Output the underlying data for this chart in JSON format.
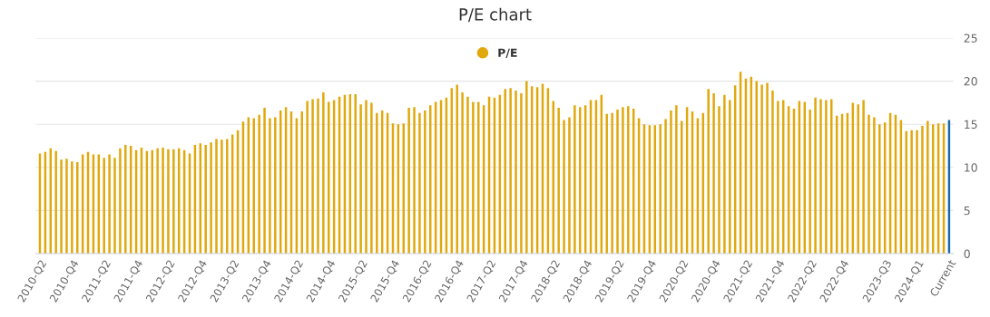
{
  "chart_data": {
    "type": "bar",
    "title": "P/E chart",
    "categories": [
      "2010-Q2",
      null,
      null,
      null,
      null,
      null,
      "2010-Q4",
      null,
      null,
      null,
      null,
      null,
      "2011-Q2",
      null,
      null,
      null,
      null,
      null,
      "2011-Q4",
      null,
      null,
      null,
      null,
      null,
      "2012-Q2",
      null,
      null,
      null,
      null,
      null,
      "2012-Q4",
      null,
      null,
      null,
      null,
      null,
      "2013-Q2",
      null,
      null,
      null,
      null,
      null,
      "2013-Q4",
      null,
      null,
      null,
      null,
      null,
      "2014-Q2",
      null,
      null,
      null,
      null,
      null,
      "2014-Q4",
      null,
      null,
      null,
      null,
      null,
      "2015-Q2",
      null,
      null,
      null,
      null,
      null,
      "2015-Q4",
      null,
      null,
      null,
      null,
      null,
      "2016-Q2",
      null,
      null,
      null,
      null,
      null,
      "2016-Q4",
      null,
      null,
      null,
      null,
      null,
      "2017-Q2",
      null,
      null,
      null,
      null,
      null,
      "2017-Q4",
      null,
      null,
      null,
      null,
      null,
      "2018-Q2",
      null,
      null,
      null,
      null,
      null,
      "2018-Q4",
      null,
      null,
      null,
      null,
      null,
      "2019-Q2",
      null,
      null,
      null,
      null,
      null,
      "2019-Q4",
      null,
      null,
      null,
      null,
      null,
      "2020-Q2",
      null,
      null,
      null,
      null,
      null,
      "2020-Q4",
      null,
      null,
      null,
      null,
      null,
      "2021-Q2",
      null,
      null,
      null,
      null,
      null,
      "2021-Q4",
      null,
      null,
      null,
      null,
      null,
      "2022-Q2",
      null,
      null,
      null,
      null,
      null,
      "2022-Q4",
      null,
      null,
      null,
      null,
      null,
      null,
      null,
      "2023-Q3",
      null,
      null,
      null,
      null,
      null,
      "2024-Q1",
      null,
      null,
      null,
      null,
      null,
      "Current"
    ],
    "series": [
      {
        "name": "P/E",
        "color": "#e0a80c",
        "values": [
          11.6,
          11.8,
          12.2,
          11.9,
          10.9,
          11.0,
          10.7,
          10.6,
          11.5,
          11.8,
          11.5,
          11.5,
          11.1,
          11.5,
          11.1,
          12.2,
          12.6,
          12.5,
          12.0,
          12.3,
          11.9,
          12.0,
          12.2,
          12.3,
          12.1,
          12.1,
          12.2,
          12.0,
          11.6,
          12.6,
          12.8,
          12.6,
          12.9,
          13.3,
          13.2,
          13.3,
          13.8,
          14.3,
          15.3,
          15.8,
          15.7,
          16.1,
          16.9,
          15.7,
          15.8,
          16.6,
          17.0,
          16.5,
          15.7,
          16.5,
          17.7,
          17.9,
          18.0,
          18.7,
          17.6,
          17.8,
          18.2,
          18.4,
          18.5,
          18.5,
          17.3,
          17.8,
          17.5,
          16.3,
          16.6,
          16.3,
          15.1,
          15.0,
          15.1,
          16.9,
          17.0,
          16.3,
          16.6,
          17.2,
          17.6,
          17.8,
          18.1,
          19.2,
          19.6,
          18.7,
          18.2,
          17.6,
          17.6,
          17.2,
          18.2,
          18.1,
          18.4,
          19.1,
          19.2,
          18.9,
          18.6,
          20.0,
          19.4,
          19.3,
          19.7,
          19.2,
          17.7,
          16.9,
          15.5,
          15.8,
          17.2,
          17.0,
          17.2,
          17.8,
          17.8,
          18.4,
          16.2,
          16.3,
          16.7,
          17.0,
          17.1,
          16.8,
          15.7,
          15.0,
          14.9,
          14.9,
          15.0,
          15.6,
          16.6,
          17.2,
          15.4,
          17.0,
          16.5,
          15.7,
          16.3,
          19.1,
          18.6,
          17.1,
          18.4,
          17.8,
          19.5,
          21.1,
          20.3,
          20.5,
          20.0,
          19.6,
          19.8,
          18.9,
          17.7,
          17.8,
          17.1,
          16.8,
          17.7,
          17.6,
          16.7,
          18.1,
          17.9,
          17.8,
          17.9,
          16.0,
          16.2,
          16.3,
          17.5,
          17.3,
          17.8,
          16.1,
          15.8,
          15.0,
          15.2,
          16.3,
          16.1,
          15.5,
          14.2,
          14.3,
          14.3,
          14.8,
          15.4,
          15.0,
          15.1,
          15.1,
          15.5
        ],
        "colors": [
          "#e0a80c",
          "#e0a80c",
          "#e0a80c",
          "#e0a80c",
          "#e0a80c",
          "#e0a80c",
          "#e0a80c",
          "#e0a80c",
          "#e0a80c",
          "#e0a80c",
          "#e0a80c",
          "#e0a80c",
          "#e0a80c",
          "#e0a80c",
          "#e0a80c",
          "#e0a80c",
          "#e0a80c",
          "#e0a80c",
          "#e0a80c",
          "#e0a80c",
          "#e0a80c",
          "#e0a80c",
          "#e0a80c",
          "#e0a80c",
          "#e0a80c",
          "#e0a80c",
          "#e0a80c",
          "#e0a80c",
          "#e0a80c",
          "#e0a80c",
          "#e0a80c",
          "#e0a80c",
          "#e0a80c",
          "#e0a80c",
          "#e0a80c",
          "#e0a80c",
          "#e0a80c",
          "#e0a80c",
          "#e0a80c",
          "#e0a80c",
          "#e0a80c",
          "#e0a80c",
          "#e0a80c",
          "#e0a80c",
          "#e0a80c",
          "#e0a80c",
          "#e0a80c",
          "#e0a80c",
          "#e0a80c",
          "#e0a80c",
          "#e0a80c",
          "#e0a80c",
          "#e0a80c",
          "#e0a80c",
          "#e0a80c",
          "#e0a80c",
          "#e0a80c",
          "#e0a80c",
          "#e0a80c",
          "#e0a80c",
          "#e0a80c",
          "#e0a80c",
          "#e0a80c",
          "#e0a80c",
          "#e0a80c",
          "#e0a80c",
          "#e0a80c",
          "#e0a80c",
          "#e0a80c",
          "#e0a80c",
          "#e0a80c",
          "#e0a80c",
          "#e0a80c",
          "#e0a80c",
          "#e0a80c",
          "#e0a80c",
          "#e0a80c",
          "#e0a80c",
          "#e0a80c",
          "#e0a80c",
          "#e0a80c",
          "#e0a80c",
          "#e0a80c",
          "#e0a80c",
          "#e0a80c",
          "#e0a80c",
          "#e0a80c",
          "#e0a80c",
          "#e0a80c",
          "#e0a80c",
          "#e0a80c",
          "#e0a80c",
          "#e0a80c",
          "#e0a80c",
          "#e0a80c",
          "#e0a80c",
          "#e0a80c",
          "#e0a80c",
          "#e0a80c",
          "#e0a80c",
          "#e0a80c",
          "#e0a80c",
          "#e0a80c",
          "#e0a80c",
          "#e0a80c",
          "#e0a80c",
          "#e0a80c",
          "#e0a80c",
          "#e0a80c",
          "#e0a80c",
          "#e0a80c",
          "#e0a80c",
          "#e0a80c",
          "#e0a80c",
          "#e0a80c",
          "#e0a80c",
          "#e0a80c",
          "#e0a80c",
          "#e0a80c",
          "#e0a80c",
          "#e0a80c",
          "#e0a80c",
          "#e0a80c",
          "#e0a80c",
          "#e0a80c",
          "#e0a80c",
          "#e0a80c",
          "#e0a80c",
          "#e0a80c",
          "#e0a80c",
          "#e0a80c",
          "#e0a80c",
          "#e0a80c",
          "#e0a80c",
          "#e0a80c",
          "#e0a80c",
          "#e0a80c",
          "#e0a80c",
          "#e0a80c",
          "#e0a80c",
          "#e0a80c",
          "#e0a80c",
          "#e0a80c",
          "#e0a80c",
          "#e0a80c",
          "#e0a80c",
          "#e0a80c",
          "#e0a80c",
          "#e0a80c",
          "#e0a80c",
          "#e0a80c",
          "#e0a80c",
          "#e0a80c",
          "#e0a80c",
          "#e0a80c",
          "#e0a80c",
          "#e0a80c",
          "#e0a80c",
          "#e0a80c",
          "#e0a80c",
          "#e0a80c",
          "#e0a80c",
          "#e0a80c",
          "#e0a80c",
          "#e0a80c",
          "#e0a80c",
          "#e0a80c",
          "#e0a80c",
          "#e0a80c",
          "#e0a80c",
          "#1a6aa8"
        ]
      }
    ],
    "ylim": [
      0,
      25
    ],
    "yticks": [
      0,
      5,
      10,
      15,
      20,
      25
    ],
    "grid": "y",
    "legend": "top"
  }
}
